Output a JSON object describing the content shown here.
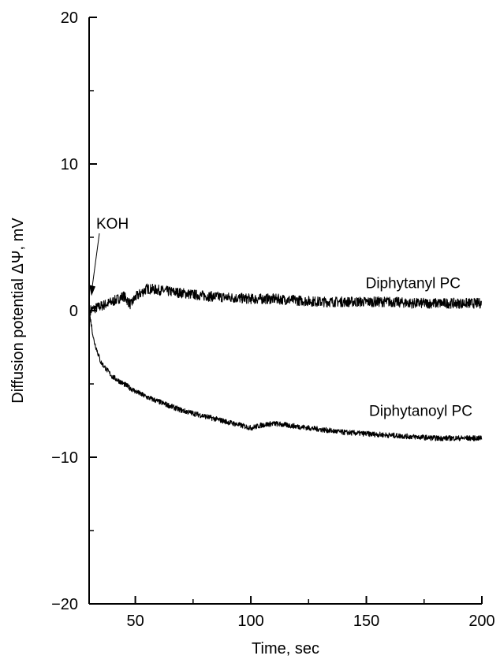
{
  "chart_data": {
    "type": "line",
    "xlabel": "Time, sec",
    "ylabel": "Diffusion potential ΔΨ, mV",
    "xlim": [
      30,
      200
    ],
    "ylim": [
      -20,
      20
    ],
    "x_ticks": [
      50,
      100,
      150,
      200
    ],
    "x_tick_labels": [
      "50",
      "100",
      "150",
      "200"
    ],
    "y_ticks": [
      -20,
      -10,
      0,
      10,
      20
    ],
    "y_tick_labels": [
      "−20",
      "−10",
      "0",
      "10",
      "20"
    ],
    "grid": false,
    "series": [
      {
        "name": "Diphytanyl PC",
        "x": [
          30,
          35,
          40,
          45,
          48,
          50,
          55,
          60,
          65,
          70,
          80,
          90,
          100,
          110,
          120,
          130,
          140,
          150,
          160,
          170,
          180,
          190,
          200
        ],
        "y": [
          0.0,
          0.3,
          0.6,
          1.0,
          0.4,
          0.9,
          1.5,
          1.4,
          1.3,
          1.2,
          1.0,
          0.9,
          0.8,
          0.8,
          0.7,
          0.6,
          0.6,
          0.6,
          0.6,
          0.5,
          0.5,
          0.5,
          0.5
        ]
      },
      {
        "name": "Diphytanoyl PC",
        "x": [
          30,
          32,
          35,
          40,
          45,
          50,
          55,
          60,
          70,
          80,
          90,
          100,
          105,
          110,
          115,
          120,
          130,
          140,
          150,
          160,
          170,
          180,
          190,
          200
        ],
        "y": [
          0.0,
          -2.0,
          -3.5,
          -4.5,
          -5.0,
          -5.5,
          -5.9,
          -6.2,
          -6.8,
          -7.2,
          -7.6,
          -8.0,
          -7.8,
          -7.7,
          -7.8,
          -7.9,
          -8.1,
          -8.3,
          -8.4,
          -8.5,
          -8.6,
          -8.7,
          -8.7,
          -8.7
        ]
      }
    ],
    "annotations": [
      {
        "text": "KOH",
        "x": 30,
        "y": 1.0
      }
    ]
  }
}
